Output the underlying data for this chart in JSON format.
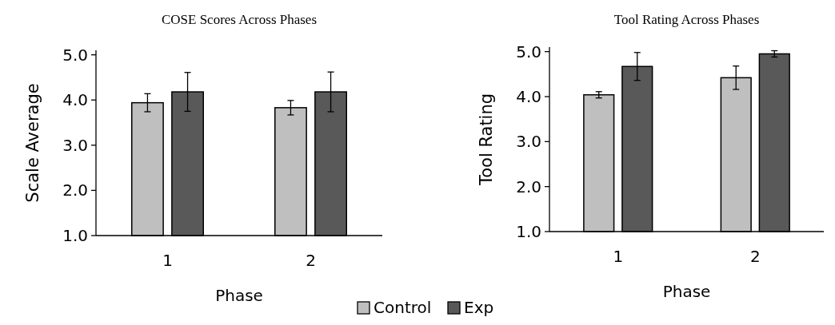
{
  "chart_data": [
    {
      "type": "bar",
      "title": "COSE Scores Across Phases",
      "xlabel": "Phase",
      "ylabel": "Scale Average",
      "categories": [
        "1",
        "2"
      ],
      "series": [
        {
          "name": "Control",
          "color": "#bfbfbf",
          "values": [
            3.94,
            3.83
          ],
          "errors": [
            0.2,
            0.16
          ]
        },
        {
          "name": "Exp",
          "color": "#595959",
          "values": [
            4.18,
            4.18
          ],
          "errors": [
            0.43,
            0.44
          ]
        }
      ],
      "ylim": [
        1,
        5.1
      ],
      "yticks": [
        {
          "value": 1,
          "label": "1.0"
        },
        {
          "value": 2,
          "label": "2.0"
        },
        {
          "value": 3,
          "label": "3.0"
        },
        {
          "value": 4,
          "label": "4.0"
        },
        {
          "value": 5,
          "label": "5.0"
        }
      ],
      "grid": false,
      "legend": "bottom"
    },
    {
      "type": "bar",
      "title": "Tool Rating Across Phases",
      "xlabel": "Phase",
      "ylabel": "Tool Rating",
      "categories": [
        "1",
        "2"
      ],
      "series": [
        {
          "color": "#bfbfbf",
          "values": [
            4.04,
            4.42
          ],
          "errors": [
            0.07,
            0.26
          ]
        },
        {
          "color": "#595959",
          "values": [
            4.67,
            4.95
          ],
          "errors": [
            0.31,
            0.07
          ]
        }
      ],
      "ylim": [
        1,
        5.1
      ],
      "yticks": [
        {
          "value": 1,
          "label": "1.0"
        },
        {
          "value": 2,
          "label": "2.0"
        },
        {
          "value": 3,
          "label": "3.0"
        },
        {
          "value": 4,
          "label": "4.0"
        },
        {
          "value": 5,
          "label": "5.0"
        }
      ],
      "grid": false
    }
  ]
}
